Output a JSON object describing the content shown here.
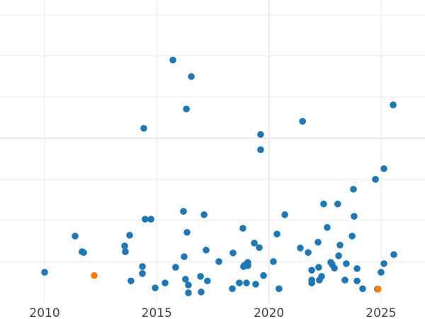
{
  "chart_data": {
    "type": "scatter",
    "title": "",
    "xlabel": "",
    "ylabel": "",
    "xlim": [
      2008.01,
      2026.96
    ],
    "ylim": [
      0,
      7.36
    ],
    "grid": true,
    "x_ticks": [
      "2010",
      "2015",
      "2020",
      "2025"
    ],
    "y_ticks": [],
    "colors": {
      "blue": "#1f77b4",
      "orange": "#ff7f0e"
    },
    "points": [
      {
        "x": 2010.0,
        "y": 0.74,
        "c": "blue"
      },
      {
        "x": 2011.36,
        "y": 1.62,
        "c": "blue"
      },
      {
        "x": 2011.67,
        "y": 1.24,
        "c": "blue"
      },
      {
        "x": 2011.74,
        "y": 1.22,
        "c": "blue"
      },
      {
        "x": 2012.21,
        "y": 0.66,
        "c": "orange"
      },
      {
        "x": 2013.57,
        "y": 1.38,
        "c": "blue"
      },
      {
        "x": 2013.6,
        "y": 1.24,
        "c": "blue"
      },
      {
        "x": 2013.79,
        "y": 1.64,
        "c": "blue"
      },
      {
        "x": 2013.85,
        "y": 0.53,
        "c": "blue"
      },
      {
        "x": 2014.36,
        "y": 0.88,
        "c": "blue"
      },
      {
        "x": 2014.36,
        "y": 0.71,
        "c": "blue"
      },
      {
        "x": 2014.42,
        "y": 4.24,
        "c": "blue"
      },
      {
        "x": 2014.48,
        "y": 2.03,
        "c": "blue"
      },
      {
        "x": 2014.74,
        "y": 2.03,
        "c": "blue"
      },
      {
        "x": 2014.93,
        "y": 0.36,
        "c": "blue"
      },
      {
        "x": 2015.37,
        "y": 0.48,
        "c": "blue"
      },
      {
        "x": 2015.72,
        "y": 5.9,
        "c": "blue"
      },
      {
        "x": 2015.84,
        "y": 0.86,
        "c": "blue"
      },
      {
        "x": 2016.19,
        "y": 2.22,
        "c": "blue"
      },
      {
        "x": 2016.22,
        "y": 1.12,
        "c": "blue"
      },
      {
        "x": 2016.28,
        "y": 0.57,
        "c": "blue"
      },
      {
        "x": 2016.32,
        "y": 4.71,
        "c": "blue"
      },
      {
        "x": 2016.35,
        "y": 1.71,
        "c": "blue"
      },
      {
        "x": 2016.41,
        "y": 0.43,
        "c": "blue"
      },
      {
        "x": 2016.41,
        "y": 0.24,
        "c": "blue"
      },
      {
        "x": 2016.54,
        "y": 5.5,
        "c": "blue"
      },
      {
        "x": 2016.95,
        "y": 0.64,
        "c": "blue"
      },
      {
        "x": 2016.98,
        "y": 0.26,
        "c": "blue"
      },
      {
        "x": 2017.11,
        "y": 2.14,
        "c": "blue"
      },
      {
        "x": 2017.2,
        "y": 1.28,
        "c": "blue"
      },
      {
        "x": 2017.26,
        "y": 0.53,
        "c": "blue"
      },
      {
        "x": 2017.77,
        "y": 1.0,
        "c": "blue"
      },
      {
        "x": 2018.37,
        "y": 0.34,
        "c": "blue"
      },
      {
        "x": 2018.4,
        "y": 1.21,
        "c": "blue"
      },
      {
        "x": 2018.68,
        "y": 0.48,
        "c": "blue"
      },
      {
        "x": 2018.84,
        "y": 1.81,
        "c": "blue"
      },
      {
        "x": 2018.87,
        "y": 0.88,
        "c": "blue"
      },
      {
        "x": 2018.91,
        "y": 0.91,
        "c": "blue"
      },
      {
        "x": 2019.0,
        "y": 0.48,
        "c": "blue"
      },
      {
        "x": 2019.06,
        "y": 0.98,
        "c": "blue"
      },
      {
        "x": 2019.06,
        "y": 0.9,
        "c": "blue"
      },
      {
        "x": 2019.35,
        "y": 1.45,
        "c": "blue"
      },
      {
        "x": 2019.41,
        "y": 0.45,
        "c": "blue"
      },
      {
        "x": 2019.57,
        "y": 1.34,
        "c": "blue"
      },
      {
        "x": 2019.63,
        "y": 4.09,
        "c": "blue"
      },
      {
        "x": 2019.63,
        "y": 3.72,
        "c": "blue"
      },
      {
        "x": 2019.76,
        "y": 0.66,
        "c": "blue"
      },
      {
        "x": 2020.2,
        "y": 1.0,
        "c": "blue"
      },
      {
        "x": 2020.36,
        "y": 1.67,
        "c": "blue"
      },
      {
        "x": 2020.45,
        "y": 0.34,
        "c": "blue"
      },
      {
        "x": 2020.71,
        "y": 2.14,
        "c": "blue"
      },
      {
        "x": 2021.4,
        "y": 1.33,
        "c": "blue"
      },
      {
        "x": 2021.5,
        "y": 4.41,
        "c": "blue"
      },
      {
        "x": 2021.75,
        "y": 1.22,
        "c": "blue"
      },
      {
        "x": 2021.91,
        "y": 0.79,
        "c": "blue"
      },
      {
        "x": 2021.91,
        "y": 0.55,
        "c": "blue"
      },
      {
        "x": 2021.91,
        "y": 0.48,
        "c": "blue"
      },
      {
        "x": 2022.19,
        "y": 1.47,
        "c": "blue"
      },
      {
        "x": 2022.22,
        "y": 0.86,
        "c": "blue"
      },
      {
        "x": 2022.25,
        "y": 0.55,
        "c": "blue"
      },
      {
        "x": 2022.35,
        "y": 0.64,
        "c": "blue"
      },
      {
        "x": 2022.44,
        "y": 2.4,
        "c": "blue"
      },
      {
        "x": 2022.6,
        "y": 1.83,
        "c": "blue"
      },
      {
        "x": 2022.76,
        "y": 0.98,
        "c": "blue"
      },
      {
        "x": 2022.82,
        "y": 0.93,
        "c": "blue"
      },
      {
        "x": 2022.92,
        "y": 0.84,
        "c": "blue"
      },
      {
        "x": 2023.07,
        "y": 2.4,
        "c": "blue"
      },
      {
        "x": 2023.11,
        "y": 1.14,
        "c": "blue"
      },
      {
        "x": 2023.17,
        "y": 1.4,
        "c": "blue"
      },
      {
        "x": 2023.39,
        "y": 0.55,
        "c": "blue"
      },
      {
        "x": 2023.45,
        "y": 0.95,
        "c": "blue"
      },
      {
        "x": 2023.71,
        "y": 1.62,
        "c": "blue"
      },
      {
        "x": 2023.77,
        "y": 2.76,
        "c": "blue"
      },
      {
        "x": 2023.8,
        "y": 2.1,
        "c": "blue"
      },
      {
        "x": 2023.93,
        "y": 0.83,
        "c": "blue"
      },
      {
        "x": 2023.93,
        "y": 0.53,
        "c": "blue"
      },
      {
        "x": 2024.18,
        "y": 0.34,
        "c": "blue"
      },
      {
        "x": 2024.75,
        "y": 3.0,
        "c": "blue"
      },
      {
        "x": 2024.84,
        "y": 0.33,
        "c": "blue"
      },
      {
        "x": 2024.87,
        "y": 0.33,
        "c": "orange"
      },
      {
        "x": 2025.0,
        "y": 0.74,
        "c": "blue"
      },
      {
        "x": 2025.13,
        "y": 3.26,
        "c": "blue"
      },
      {
        "x": 2025.13,
        "y": 0.95,
        "c": "blue"
      },
      {
        "x": 2025.54,
        "y": 4.81,
        "c": "blue"
      },
      {
        "x": 2025.57,
        "y": 1.17,
        "c": "blue"
      }
    ]
  }
}
